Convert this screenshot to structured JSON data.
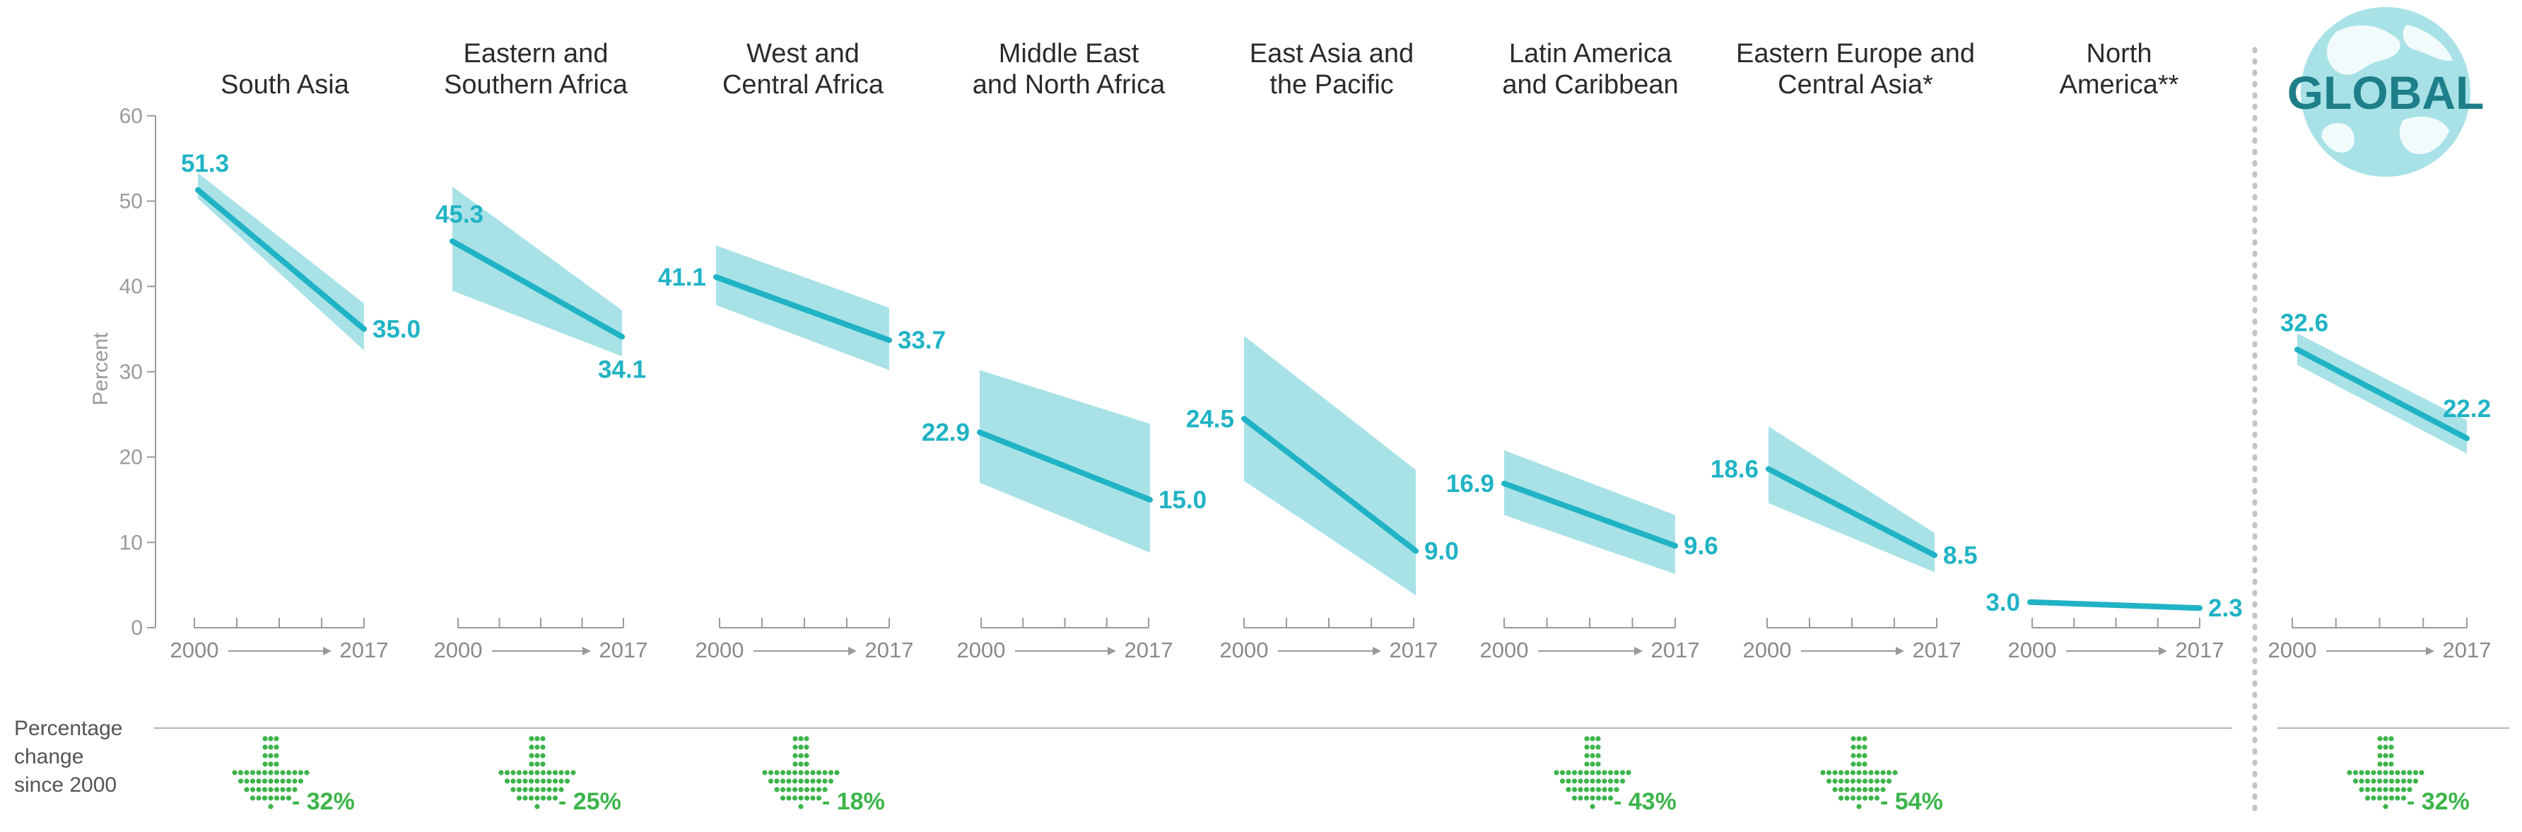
{
  "colors": {
    "line": "#20b3c5",
    "band": "#a8e2e7",
    "arrow": "#3cb44a",
    "axis": "#9a9a9a",
    "globe": "#a8e2e7",
    "globe_text": "#1e7f8a"
  },
  "percentage_change_label": [
    "Percentage",
    "change",
    "since 2000"
  ],
  "global_badge": {
    "text": "GLOBAL",
    "icon": "globe-icon"
  },
  "chart_data": {
    "type": "line",
    "ylabel": "Percent",
    "ylim": [
      0,
      60
    ],
    "yticks": [
      0,
      10,
      20,
      30,
      40,
      50,
      60
    ],
    "x": [
      2000,
      2017
    ],
    "xlabels": [
      "2000",
      "2017"
    ],
    "series": [
      {
        "name": "South Asia",
        "title": [
          "South Asia"
        ],
        "start": 51.3,
        "end": 35.0,
        "start_label": "51.3",
        "end_label": "35.0",
        "band_start": [
          50.3,
          53.3
        ],
        "band_end": [
          32.5,
          38.0
        ],
        "change": "- 32%"
      },
      {
        "name": "Eastern and Southern Africa",
        "title": [
          "Eastern and",
          "Southern Africa"
        ],
        "start": 45.3,
        "end": 34.1,
        "start_label": "45.3",
        "end_label": "34.1",
        "band_start": [
          39.5,
          51.7
        ],
        "band_end": [
          31.8,
          37.2
        ],
        "change": "- 25%"
      },
      {
        "name": "West and Central Africa",
        "title": [
          "West and",
          "Central Africa"
        ],
        "start": 41.1,
        "end": 33.7,
        "start_label": "41.1",
        "end_label": "33.7",
        "band_start": [
          37.8,
          44.8
        ],
        "band_end": [
          30.2,
          37.5
        ],
        "change": "- 18%"
      },
      {
        "name": "Middle East and North Africa",
        "title": [
          "Middle East",
          "and North Africa"
        ],
        "start": 22.9,
        "end": 15.0,
        "start_label": "22.9",
        "end_label": "15.0",
        "band_start": [
          17.0,
          30.2
        ],
        "band_end": [
          8.8,
          23.9
        ],
        "change": ""
      },
      {
        "name": "East Asia and the Pacific",
        "title": [
          "East Asia and",
          "the Pacific"
        ],
        "start": 24.5,
        "end": 9.0,
        "start_label": "24.5",
        "end_label": "9.0",
        "band_start": [
          17.2,
          34.2
        ],
        "band_end": [
          3.8,
          18.5
        ],
        "change": ""
      },
      {
        "name": "Latin America and Caribbean",
        "title": [
          "Latin America",
          "and Caribbean"
        ],
        "start": 16.9,
        "end": 9.6,
        "start_label": "16.9",
        "end_label": "9.6",
        "band_start": [
          13.2,
          20.8
        ],
        "band_end": [
          6.3,
          13.2
        ],
        "change": "- 43%"
      },
      {
        "name": "Eastern Europe and Central Asia*",
        "title": [
          "Eastern Europe and",
          "Central Asia*"
        ],
        "start": 18.6,
        "end": 8.5,
        "start_label": "18.6",
        "end_label": "8.5",
        "band_start": [
          14.6,
          23.6
        ],
        "band_end": [
          6.5,
          11.1
        ],
        "change": "- 54%"
      },
      {
        "name": "North America**",
        "title": [
          "North",
          "America**"
        ],
        "start": 3.0,
        "end": 2.3,
        "start_label": "3.0",
        "end_label": "2.3",
        "band_start": [
          2.8,
          3.2
        ],
        "band_end": [
          2.1,
          2.5
        ],
        "change": ""
      },
      {
        "name": "Global",
        "title": [],
        "start": 32.6,
        "end": 22.2,
        "start_label": "32.6",
        "end_label": "22.2",
        "band_start": [
          30.8,
          34.5
        ],
        "band_end": [
          20.4,
          24.3
        ],
        "change": "- 32%"
      }
    ]
  }
}
